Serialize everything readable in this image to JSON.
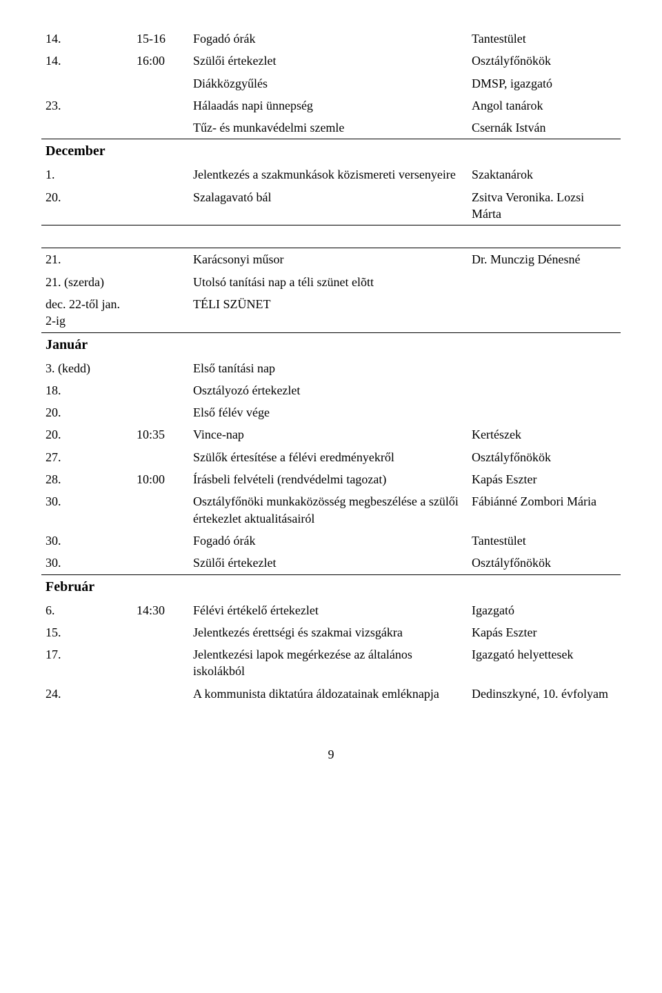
{
  "page_number": "9",
  "blocks": [
    {
      "type": "rows",
      "borderBottom": true,
      "rows": [
        {
          "date": "14.",
          "time": "15-16",
          "event": "Fogadó órák",
          "resp": "Tantestület"
        },
        {
          "date": "14.",
          "time": "16:00",
          "event": "Szülői értekezlet",
          "resp": "Osztályfőnökök"
        },
        {
          "date": "",
          "time": "",
          "event": "Diákközgyűlés",
          "resp": "DMSP, igazgató"
        },
        {
          "date": "23.",
          "time": "",
          "event": "Hálaadás napi ünnepség",
          "resp": "Angol tanárok"
        },
        {
          "date": "",
          "time": "",
          "event": "Tűz- és munkavédelmi szemle",
          "resp": "Csernák István"
        }
      ]
    },
    {
      "type": "month",
      "label": "December"
    },
    {
      "type": "rows",
      "borderBottom": true,
      "rows": [
        {
          "date": "1.",
          "time": "",
          "event": "Jelentkezés a szakmunkások közismereti versenyeire",
          "resp": "Szaktanárok"
        },
        {
          "date": "20.",
          "time": "",
          "event": "Szalagavató bál",
          "resp": "Zsitva Veronika. Lozsi Márta"
        }
      ]
    },
    {
      "type": "spacer"
    },
    {
      "type": "rows",
      "borderTop": true,
      "borderBottom": true,
      "rows": [
        {
          "date": "21.",
          "time": "",
          "event": "Karácsonyi műsor",
          "resp": "Dr. Munczig Dénesné"
        },
        {
          "date": "21. (szerda)",
          "time": "",
          "event": "Utolsó tanítási nap a téli szünet elõtt",
          "resp": ""
        },
        {
          "date": "dec. 22-től jan. 2-ig",
          "time": "",
          "event": "TÉLI SZÜNET",
          "resp": ""
        }
      ]
    },
    {
      "type": "month",
      "label": "Január"
    },
    {
      "type": "rows",
      "borderBottom": true,
      "rows": [
        {
          "date": "3. (kedd)",
          "time": "",
          "event": "Első tanítási nap",
          "resp": ""
        },
        {
          "date": "18.",
          "time": "",
          "event": "Osztályozó értekezlet",
          "resp": ""
        },
        {
          "date": "20.",
          "time": "",
          "event": "Első félév vége",
          "resp": ""
        },
        {
          "date": "20.",
          "time": "10:35",
          "event": "Vince-nap",
          "resp": "Kertészek"
        },
        {
          "date": "27.",
          "time": "",
          "event": "Szülők értesítése a félévi eredményekről",
          "resp": "Osztályfőnökök"
        },
        {
          "date": "28.",
          "time": "10:00",
          "event": "Írásbeli felvételi (rendvédelmi tagozat)",
          "resp": "Kapás Eszter"
        },
        {
          "date": "30.",
          "time": "",
          "event": "Osztályfőnöki munkaközösség megbeszélése a szülői értekezlet aktualitásairól",
          "resp": "Fábiánné Zombori Mária"
        },
        {
          "date": "30.",
          "time": "",
          "event": "Fogadó órák",
          "resp": "Tantestület"
        },
        {
          "date": "30.",
          "time": "",
          "event": "Szülői értekezlet",
          "resp": "Osztályfőnökök"
        }
      ]
    },
    {
      "type": "month",
      "label": "Február"
    },
    {
      "type": "rows",
      "rows": [
        {
          "date": "6.",
          "time": "14:30",
          "event": "Félévi értékelő értekezlet",
          "resp": "Igazgató"
        },
        {
          "date": "15.",
          "time": "",
          "event": "Jelentkezés érettségi és szakmai vizsgákra",
          "resp": "Kapás Eszter"
        },
        {
          "date": "17.",
          "time": "",
          "event": "Jelentkezési lapok megérkezése az általános iskolákból",
          "resp": "Igazgató helyettesek"
        },
        {
          "date": "24.",
          "time": "",
          "event": "A kommunista diktatúra áldozatainak emléknapja",
          "resp": "Dedinszkyné, 10. évfolyam"
        }
      ]
    }
  ]
}
